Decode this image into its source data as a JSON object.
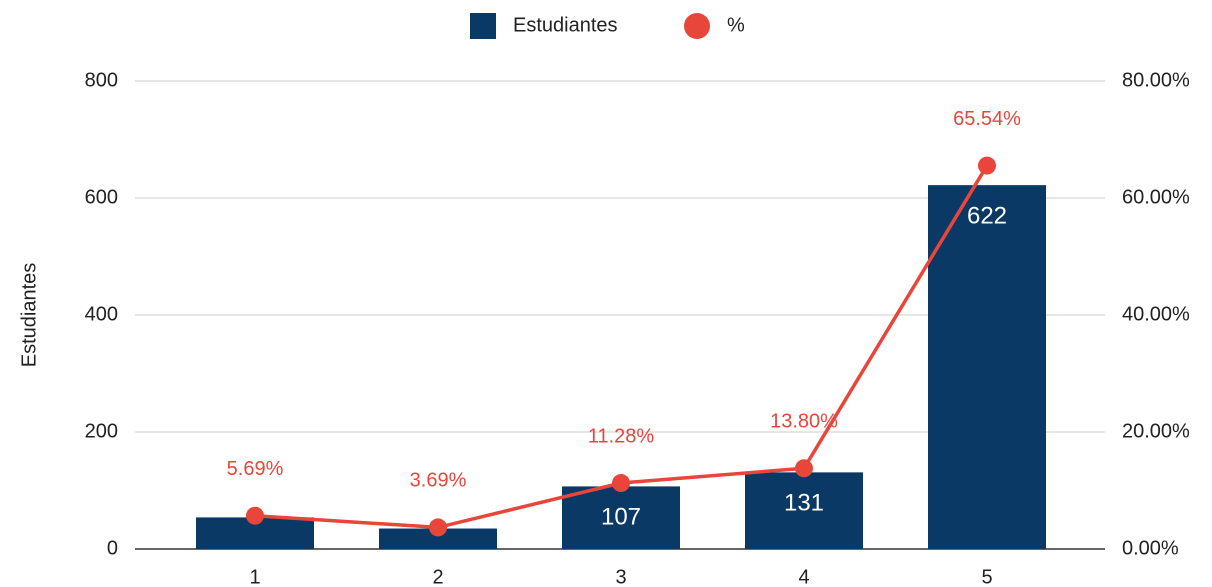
{
  "chart_data": {
    "type": "bar+line",
    "y_label": "Estudiantes",
    "categories": [
      "1",
      "2",
      "3",
      "4",
      "5"
    ],
    "series": [
      {
        "name": "Estudiantes",
        "type": "bar",
        "color": "#0b3966",
        "values": [
          54,
          35,
          107,
          131,
          622
        ]
      },
      {
        "name": "%",
        "type": "line",
        "axis": "y2",
        "color": "#e8463a",
        "values": [
          5.69,
          3.69,
          11.28,
          13.8,
          65.54
        ],
        "value_labels": [
          "5.69%",
          "3.69%",
          "11.28%",
          "13.80%",
          "65.54%"
        ]
      }
    ],
    "ylim": [
      0,
      800
    ],
    "yticks": [
      0,
      200,
      400,
      600,
      800
    ],
    "y2lim": [
      0,
      80
    ],
    "y2ticks": [
      {
        "value": 0,
        "label": "0.00%"
      },
      {
        "value": 20,
        "label": "20.00%"
      },
      {
        "value": 40,
        "label": "40.00%"
      },
      {
        "value": 60,
        "label": "60.00%"
      },
      {
        "value": 80,
        "label": "80.00%"
      }
    ],
    "grid": true,
    "legend": "top"
  }
}
